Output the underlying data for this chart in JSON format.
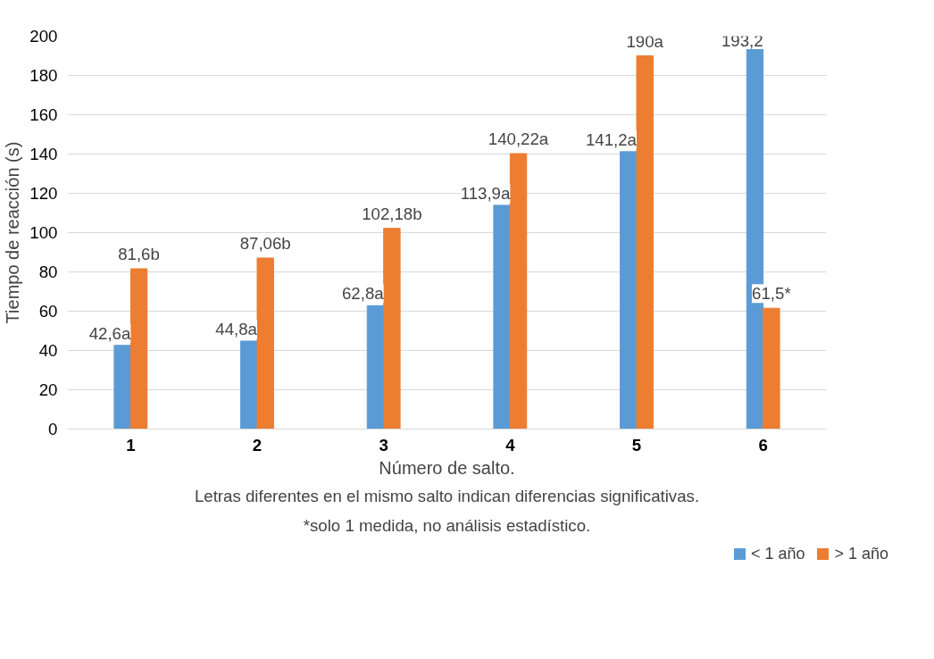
{
  "chart_data": {
    "type": "bar",
    "xlabel": "Número de salto.",
    "ylabel": "Tiempo de reacción (s)",
    "categories": [
      "1",
      "2",
      "3",
      "4",
      "5",
      "6"
    ],
    "series": [
      {
        "name": "< 1 año",
        "color": "#5b9bd5",
        "values": [
          42.6,
          44.8,
          62.8,
          113.9,
          141.2,
          193.2
        ],
        "value_labels": [
          "42,6a",
          "44,8a",
          "62,8a",
          "113,9a",
          "141,2a",
          "193,2"
        ]
      },
      {
        "name": "> 1 año",
        "color": "#ed7d31",
        "values": [
          81.6,
          87.06,
          102.18,
          140.22,
          190,
          61.5
        ],
        "value_labels": [
          "81,6b",
          "87,06b",
          "102,18b",
          "140,22a",
          "190a",
          "61,5*"
        ]
      }
    ],
    "ylim": [
      0,
      200
    ],
    "yticks": [
      0,
      20,
      40,
      60,
      80,
      100,
      120,
      140,
      160,
      180,
      200
    ],
    "grid": "y",
    "legend": "bottom right",
    "annotations": [
      "Letras diferentes en el mismo salto indican diferencias significativas.",
      "*solo 1 medida, no análisis estadístico."
    ]
  }
}
